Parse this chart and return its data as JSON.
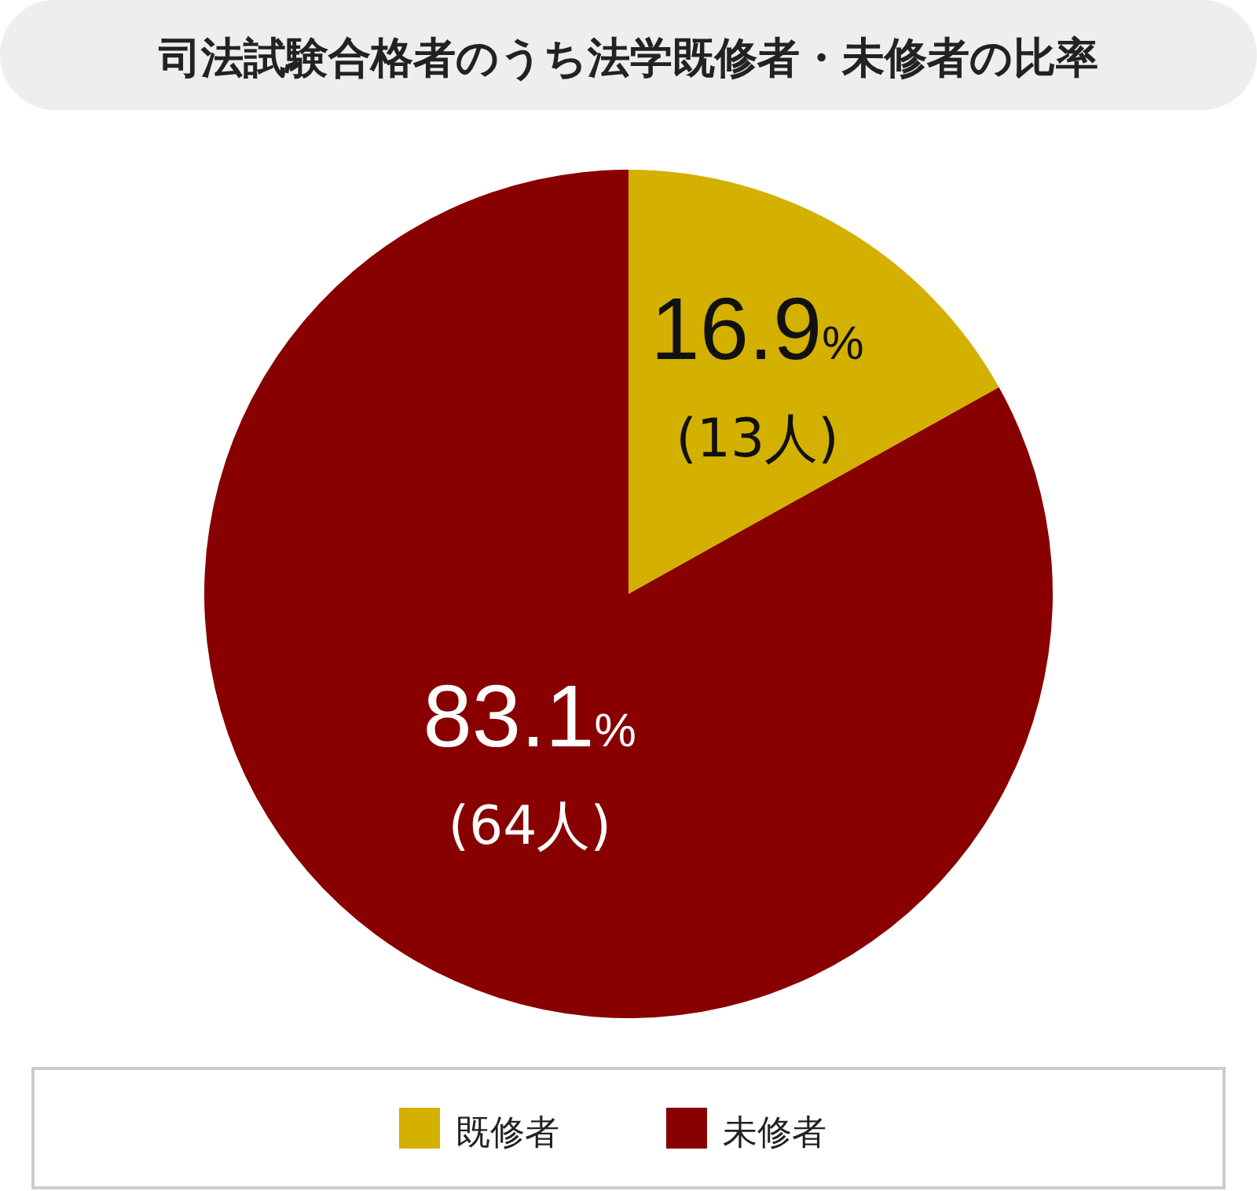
{
  "chart_data": {
    "type": "pie",
    "title": "司法試験合格者のうち法学既修者・未修者の比率",
    "categories": [
      "既修者",
      "未修者"
    ],
    "values": [
      16.9,
      83.1
    ],
    "colors": [
      "#d4b000",
      "#880000"
    ],
    "value_labels": [
      "16.9%",
      "83.1%"
    ],
    "annotations": [
      {
        "text": "(13人)",
        "x": "既修者"
      },
      {
        "text": "(64人)",
        "x": "未修者"
      }
    ],
    "legend": "bottom"
  }
}
